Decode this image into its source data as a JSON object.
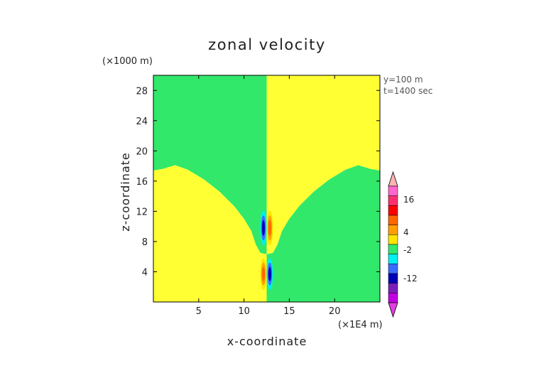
{
  "chart_data": {
    "type": "heatmap",
    "title": "zonal velocity",
    "xlabel": "x-coordinate",
    "ylabel": "z-coordinate",
    "x_unit": "(×1E4 m)",
    "y_unit": "(×1000 m)",
    "xlim": [
      0,
      25
    ],
    "ylim": [
      0,
      30
    ],
    "x_ticks": [
      5,
      10,
      15,
      20
    ],
    "y_ticks": [
      4,
      8,
      12,
      16,
      20,
      24,
      28
    ],
    "annotations": [
      "y=100 m",
      "t=1400 sec"
    ],
    "colorbar": {
      "ticks": [
        16,
        4,
        -2,
        -12
      ],
      "colors": [
        "#ff66cc",
        "#ff2e6e",
        "#ff0000",
        "#ff6600",
        "#ffa000",
        "#ffe600",
        "#31e86a",
        "#00f0f0",
        "#3a6bff",
        "#0000b8",
        "#7a1fb8",
        "#c000e0"
      ]
    },
    "background_regions": {
      "upper_left": "#31e86a",
      "upper_right": "#ffff33",
      "lower_left": "#ffff33",
      "lower_right": "#31e86a",
      "divider_x": 12.5,
      "interface_profile": [
        {
          "x": 0,
          "z": 17.4
        },
        {
          "x": 1.0,
          "z": 17.6
        },
        {
          "x": 2.4,
          "z": 18.1
        },
        {
          "x": 3.8,
          "z": 17.5
        },
        {
          "x": 5.6,
          "z": 16.2
        },
        {
          "x": 7.3,
          "z": 14.6
        },
        {
          "x": 8.9,
          "z": 12.7
        },
        {
          "x": 10.0,
          "z": 11.0
        },
        {
          "x": 10.8,
          "z": 9.4
        },
        {
          "x": 11.3,
          "z": 7.6
        },
        {
          "x": 11.8,
          "z": 6.5
        },
        {
          "x": 12.5,
          "z": 6.3
        },
        {
          "x": 13.2,
          "z": 6.5
        },
        {
          "x": 13.7,
          "z": 7.6
        },
        {
          "x": 14.2,
          "z": 9.4
        },
        {
          "x": 15.0,
          "z": 11.0
        },
        {
          "x": 16.1,
          "z": 12.7
        },
        {
          "x": 17.7,
          "z": 14.6
        },
        {
          "x": 19.4,
          "z": 16.2
        },
        {
          "x": 21.2,
          "z": 17.5
        },
        {
          "x": 22.6,
          "z": 18.1
        },
        {
          "x": 24.0,
          "z": 17.6
        },
        {
          "x": 25,
          "z": 17.4
        }
      ]
    },
    "features": [
      {
        "kind": "negative",
        "x": 12.15,
        "z": 9.8,
        "rx": 0.35,
        "rz": 2.3,
        "colors": [
          "#00f0f0",
          "#3a6bff",
          "#0000b8"
        ]
      },
      {
        "kind": "positive",
        "x": 12.85,
        "z": 9.8,
        "rx": 0.35,
        "rz": 2.3,
        "colors": [
          "#ffe600",
          "#ffa000",
          "#ff6600"
        ]
      },
      {
        "kind": "positive",
        "x": 12.15,
        "z": 3.7,
        "rx": 0.35,
        "rz": 2.1,
        "colors": [
          "#ffe600",
          "#ffa000",
          "#ff6600"
        ]
      },
      {
        "kind": "negative",
        "x": 12.85,
        "z": 3.7,
        "rx": 0.35,
        "rz": 2.1,
        "colors": [
          "#00f0f0",
          "#3a6bff",
          "#0000b8"
        ]
      }
    ]
  }
}
